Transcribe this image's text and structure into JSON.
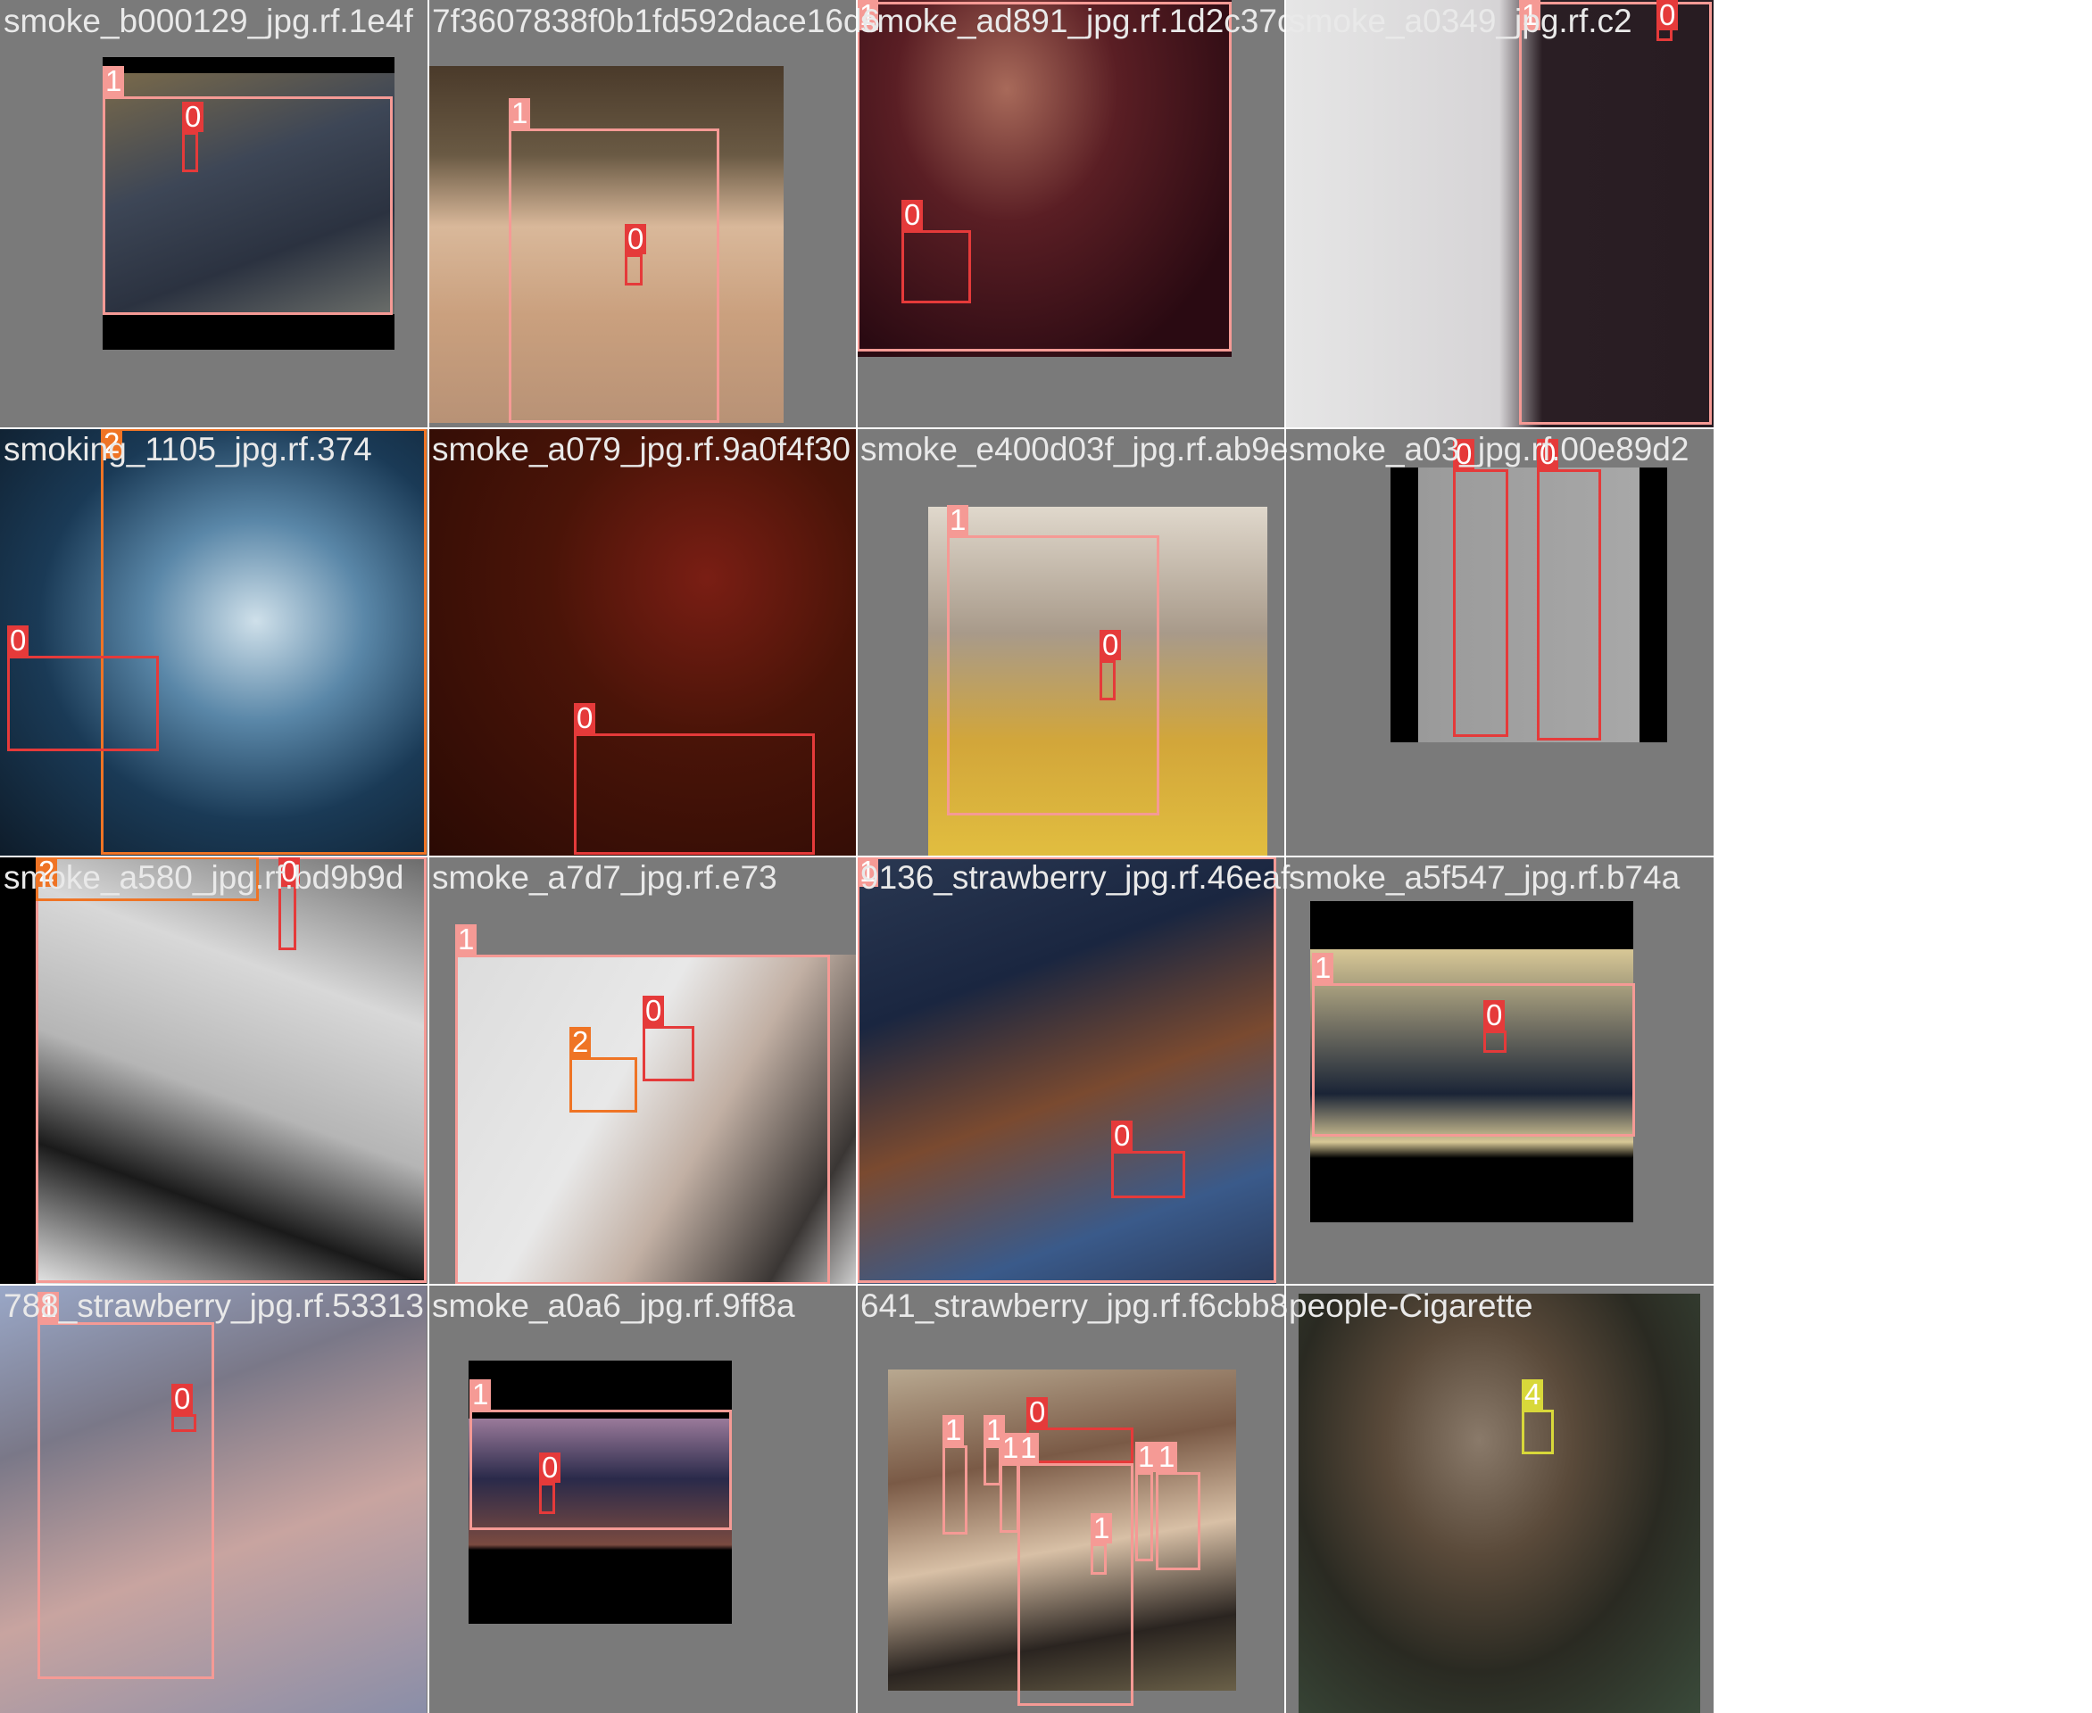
{
  "title": "Validation batch labels mosaic",
  "colors": {
    "class_0": "#e53a3a",
    "class_1": "#f59a95",
    "class_2": "#ef7425",
    "class_4": "#d8d83a",
    "caption": "#e9e9e9",
    "tile_bg": "#7a7a7a"
  },
  "tiles": [
    {
      "caption": "smoke_b000129_jpg.rf.1e4f",
      "labels": [
        "1",
        "0"
      ]
    },
    {
      "caption": "7f3607838f0b1fd592dace16d6",
      "labels": [
        "1",
        "0"
      ]
    },
    {
      "caption": "smoke_ad891_jpg.rf.1d2c37c",
      "labels": [
        "1",
        "0"
      ]
    },
    {
      "caption": "smoke_a0349_jpg.rf.c2",
      "labels": [
        "1",
        "0"
      ]
    },
    {
      "caption": "smoking_1105_jpg.rf.374",
      "labels": [
        "2",
        "0"
      ]
    },
    {
      "caption": "smoke_a079_jpg.rf.9a0f4f30",
      "labels": [
        "0"
      ]
    },
    {
      "caption": "smoke_e400d03f_jpg.rf.ab9e",
      "labels": [
        "1",
        "0"
      ]
    },
    {
      "caption": "smoke_a03_jpg.rf.00e89d2",
      "labels": [
        "0",
        "0"
      ]
    },
    {
      "caption": "smoke_a580_jpg.rf.bd9b9d",
      "labels": [
        "1",
        "2",
        "0"
      ]
    },
    {
      "caption": "smoke_a7d7_jpg.rf.e73",
      "labels": [
        "1",
        "2",
        "0"
      ]
    },
    {
      "caption": "9136_strawberry_jpg.rf.46eaf",
      "labels": [
        "1",
        "0"
      ]
    },
    {
      "caption": "smoke_a5f547_jpg.rf.b74a",
      "labels": [
        "1",
        "0"
      ]
    },
    {
      "caption": "788_strawberry_jpg.rf.53313",
      "labels": [
        "1",
        "0"
      ]
    },
    {
      "caption": "smoke_a0a6_jpg.rf.9ff8a",
      "labels": [
        "1",
        "0"
      ]
    },
    {
      "caption": "641_strawberry_jpg.rf.f6cbb8",
      "labels": [
        "1",
        "1",
        "1",
        "1",
        "1",
        "1",
        "1",
        "0"
      ]
    },
    {
      "caption": "people-Cigarette",
      "labels": [
        "4"
      ]
    }
  ]
}
